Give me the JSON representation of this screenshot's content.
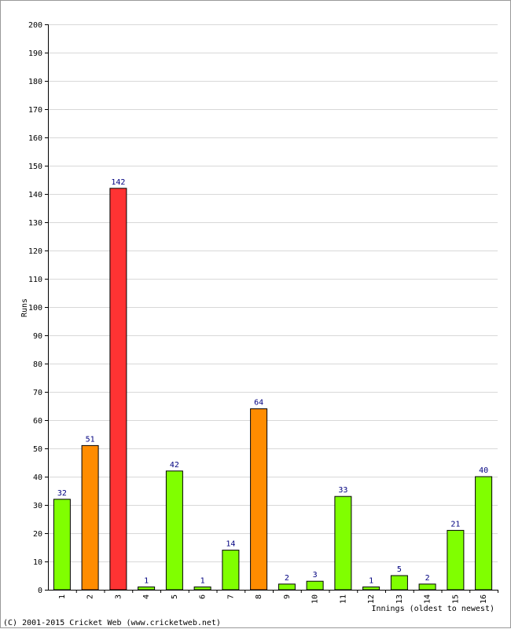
{
  "chart_data": {
    "type": "bar",
    "xlabel": "Innings (oldest to newest)",
    "ylabel": "Runs",
    "ylim": [
      0,
      200
    ],
    "ytick_step": 10,
    "grid": true,
    "categories": [
      "1",
      "2",
      "3",
      "4",
      "5",
      "6",
      "7",
      "8",
      "9",
      "10",
      "11",
      "12",
      "13",
      "14",
      "15",
      "16"
    ],
    "values": [
      32,
      51,
      142,
      1,
      42,
      1,
      14,
      64,
      2,
      3,
      33,
      1,
      5,
      2,
      21,
      40
    ],
    "bar_colors": [
      "#80ff00",
      "#ff8c00",
      "#ff3333",
      "#80ff00",
      "#80ff00",
      "#80ff00",
      "#80ff00",
      "#ff8c00",
      "#80ff00",
      "#80ff00",
      "#80ff00",
      "#80ff00",
      "#80ff00",
      "#80ff00",
      "#80ff00",
      "#80ff00"
    ],
    "grid_color": "#d8d8d8"
  },
  "footer": {
    "copyright": "(C) 2001-2015 Cricket Web (www.cricketweb.net)"
  }
}
